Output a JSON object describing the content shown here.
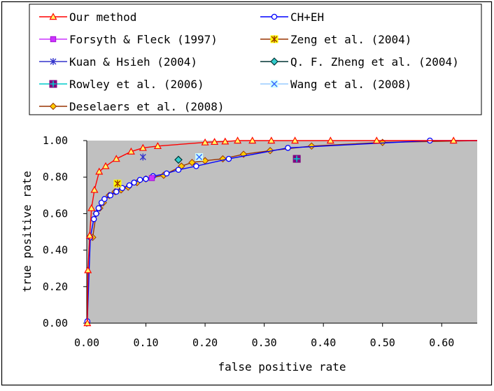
{
  "chart_data": {
    "type": "line",
    "title": "",
    "xlabel": "false positive rate",
    "ylabel": "true positive rate",
    "xlim": [
      0,
      0.66
    ],
    "ylim": [
      0,
      1.0
    ],
    "x_ticks": [
      "0.00",
      "0.10",
      "0.20",
      "0.30",
      "0.40",
      "0.50",
      "0.60"
    ],
    "x_tick_values": [
      0,
      0.1,
      0.2,
      0.3,
      0.4,
      0.5,
      0.6
    ],
    "y_ticks": [
      "0.00",
      "0.20",
      "0.40",
      "0.60",
      "0.80",
      "1.00"
    ],
    "y_tick_values": [
      0,
      0.2,
      0.4,
      0.6,
      0.8,
      1.0
    ],
    "grid": false,
    "plot_background": "#c0c0c0",
    "legend_position": "top",
    "series": [
      {
        "name": "Our method",
        "color": "#ff0000",
        "marker": "triangle",
        "x": [
          0.001,
          0.002,
          0.005,
          0.008,
          0.013,
          0.021,
          0.032,
          0.05,
          0.075,
          0.095,
          0.12,
          0.2,
          0.216,
          0.234,
          0.255,
          0.28,
          0.312,
          0.352,
          0.412,
          0.49,
          0.62,
          0.66
        ],
        "y": [
          0.0,
          0.29,
          0.48,
          0.63,
          0.73,
          0.83,
          0.86,
          0.9,
          0.94,
          0.96,
          0.97,
          0.99,
          0.993,
          0.995,
          1.0,
          1.0,
          1.0,
          1.0,
          1.0,
          1.0,
          1.0,
          1.0
        ]
      },
      {
        "name": "CH+EH",
        "color": "#0000ff",
        "marker": "circle",
        "x": [
          0.001,
          0.006,
          0.012,
          0.016,
          0.02,
          0.025,
          0.03,
          0.04,
          0.05,
          0.06,
          0.072,
          0.08,
          0.09,
          0.1,
          0.112,
          0.135,
          0.155,
          0.185,
          0.24,
          0.34,
          0.58,
          0.66
        ],
        "y": [
          0.01,
          0.47,
          0.57,
          0.6,
          0.63,
          0.66,
          0.68,
          0.7,
          0.72,
          0.74,
          0.755,
          0.77,
          0.785,
          0.79,
          0.805,
          0.82,
          0.84,
          0.86,
          0.9,
          0.96,
          1.0,
          1.0
        ]
      },
      {
        "name": "Forsyth & Fleck (1997)",
        "color": "#cc33ff",
        "marker": "square",
        "x": [
          0.11
        ],
        "y": [
          0.795
        ]
      },
      {
        "name": "Zeng et al. (2004)",
        "color": "#993300",
        "marker": "star-yellow-square",
        "x": [
          0.052
        ],
        "y": [
          0.765
        ]
      },
      {
        "name": "Kuan & Hsieh (2004)",
        "color": "#3333cc",
        "marker": "asterisk",
        "x": [
          0.095
        ],
        "y": [
          0.91
        ]
      },
      {
        "name": "Q. F. Zheng et al. (2004)",
        "color": "#003333",
        "marker": "diamond-teal",
        "x": [
          0.155
        ],
        "y": [
          0.895
        ]
      },
      {
        "name": "Rowley et al. (2006)",
        "color": "#00cccc",
        "marker": "plus-purple-square",
        "x": [
          0.355
        ],
        "y": [
          0.9
        ]
      },
      {
        "name": "Wang et al. (2008)",
        "color": "#99ccff",
        "marker": "x-cyan-square",
        "x": [
          0.19
        ],
        "y": [
          0.91
        ]
      },
      {
        "name": "Deselaers et al. (2008)",
        "color": "#993300",
        "marker": "diamond-yellow",
        "x": [
          0.01,
          0.016,
          0.022,
          0.028,
          0.038,
          0.048,
          0.058,
          0.07,
          0.085,
          0.1,
          0.13,
          0.16,
          0.178,
          0.2,
          0.23,
          0.265,
          0.31,
          0.38,
          0.5,
          0.66
        ],
        "y": [
          0.47,
          0.6,
          0.63,
          0.66,
          0.7,
          0.72,
          0.73,
          0.745,
          0.77,
          0.79,
          0.81,
          0.86,
          0.88,
          0.89,
          0.9,
          0.925,
          0.945,
          0.97,
          0.99,
          1.0
        ]
      }
    ]
  }
}
